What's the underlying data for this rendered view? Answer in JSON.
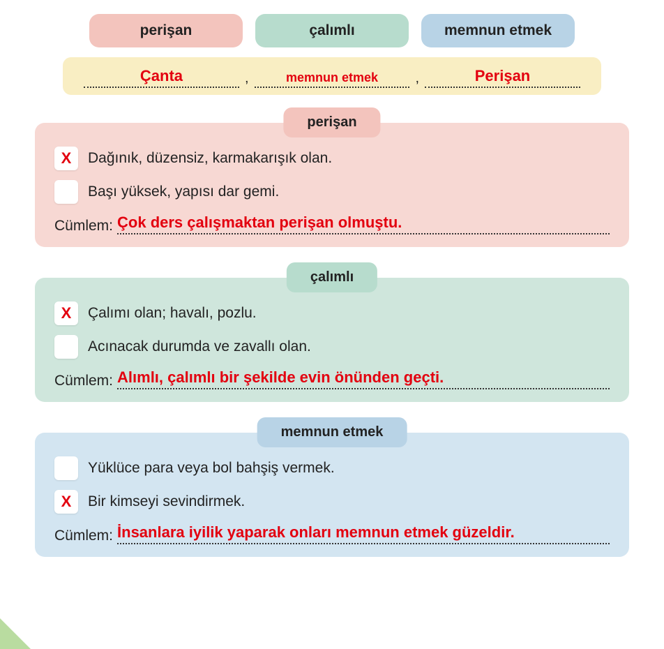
{
  "colors": {
    "pink_bg": "#f3c4bd",
    "green_bg": "#b7dccd",
    "blue_bg": "#b8d3e6",
    "yellow_bg": "#f9eec3",
    "pink_panel": "#f7d8d3",
    "green_panel": "#cfe6dc",
    "blue_panel": "#d3e5f1",
    "answer_red": "#e3000f",
    "check_red": "#e3000f",
    "text": "#222222"
  },
  "topPills": [
    {
      "label": "perişan",
      "bg": "#f3c4bd"
    },
    {
      "label": "çalımlı",
      "bg": "#b7dccd"
    },
    {
      "label": "memnun etmek",
      "bg": "#b8d3e6"
    }
  ],
  "answerBar": {
    "bg": "#f9eec3",
    "slots": [
      {
        "text": "Çanta",
        "size": "big"
      },
      {
        "text": "memnun etmek",
        "size": "small"
      },
      {
        "text": "Perişan",
        "size": "big"
      }
    ],
    "sep": ","
  },
  "sections": [
    {
      "title": "perişan",
      "tab_bg": "#f3c4bd",
      "body_bg": "#f7d8d3",
      "options": [
        {
          "checked": true,
          "text": "Dağınık, düzensiz, karmakarışık olan."
        },
        {
          "checked": false,
          "text": "Başı yüksek, yapısı dar gemi."
        }
      ],
      "sentence_label": "Cümlem:",
      "sentence": "Çok ders çalışmaktan perişan olmuştu."
    },
    {
      "title": "çalımlı",
      "tab_bg": "#b7dccd",
      "body_bg": "#cfe6dc",
      "options": [
        {
          "checked": true,
          "text": "Çalımı olan; havalı, pozlu."
        },
        {
          "checked": false,
          "text": "Acınacak durumda ve zavallı olan."
        }
      ],
      "sentence_label": "Cümlem:",
      "sentence": "Alımlı, çalımlı bir şekilde evin önünden geçti."
    },
    {
      "title": "memnun etmek",
      "tab_bg": "#b8d3e6",
      "body_bg": "#d3e5f1",
      "options": [
        {
          "checked": false,
          "text": "Yüklüce para veya bol bahşiş vermek."
        },
        {
          "checked": true,
          "text": "Bir kimseyi sevindirmek."
        }
      ],
      "sentence_label": "Cümlem:",
      "sentence": "İnsanlara iyilik yaparak onları memnun etmek güzeldir."
    }
  ]
}
